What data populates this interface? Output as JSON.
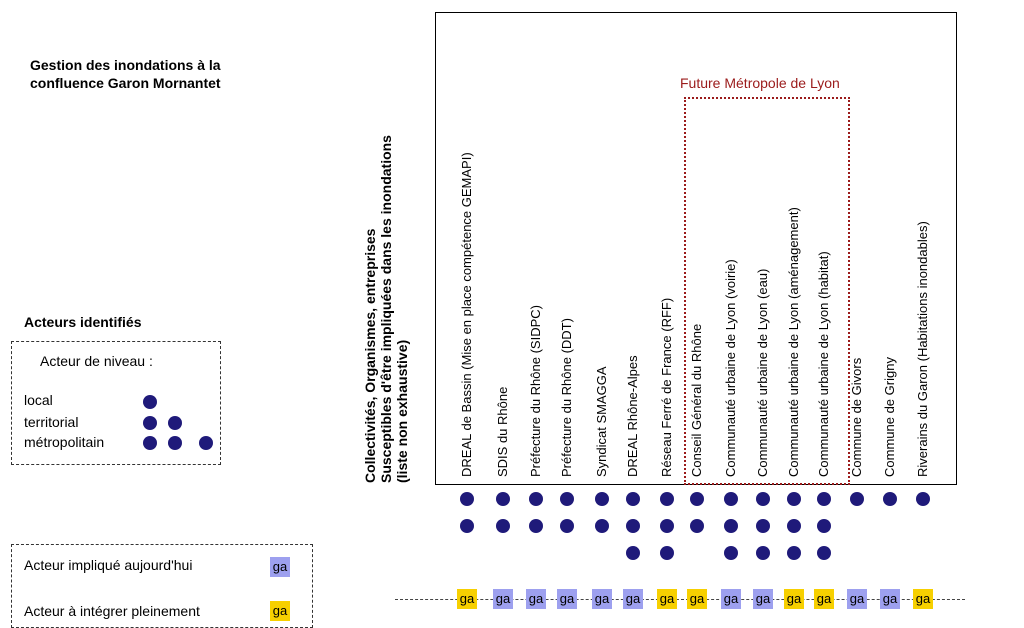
{
  "title": [
    "Gestion des inondations à la",
    "confluence Garon Mornantet"
  ],
  "legend": {
    "actors_title": "Acteurs identifiés",
    "level_heading": "Acteur de niveau :",
    "levels": [
      {
        "label": "local",
        "count": 1
      },
      {
        "label": "territorial",
        "count": 2
      },
      {
        "label": "métropolitain",
        "count": 3
      }
    ],
    "involvement": [
      {
        "label": "Acteur impliqué aujourd'hui",
        "badge": "ga",
        "color": "#9da0ef"
      },
      {
        "label": "Acteur à intégrer pleinement",
        "badge": "ga",
        "color": "#f7d000"
      }
    ]
  },
  "axis_title": [
    "Collectivités, Organismes, entreprises",
    "Susceptibles d'être impliquées dans les inondations",
    "(liste non exhaustive)"
  ],
  "group_label": "Future Métropole de Lyon",
  "colors": {
    "dot": "#1f1a7a",
    "involved": "#9da0ef",
    "to_integrate": "#f7d000",
    "group_border": "#9b1b1b"
  },
  "actors": [
    {
      "name": "DREAL de Bassin (Mise en place compétence GEMAPI)",
      "level": 2,
      "status": "to_integrate"
    },
    {
      "name": "SDIS du Rhône",
      "level": 2,
      "status": "involved"
    },
    {
      "name": "Préfecture du Rhône (SIDPC)",
      "level": 2,
      "status": "involved"
    },
    {
      "name": "Préfecture du Rhône (DDT)",
      "level": 2,
      "status": "involved"
    },
    {
      "name": "Syndicat SMAGGA",
      "level": 2,
      "status": "involved"
    },
    {
      "name": "DREAL Rhône-Alpes",
      "level": 3,
      "status": "involved"
    },
    {
      "name": "Réseau Ferré de France (RFF)",
      "level": 3,
      "status": "to_integrate"
    },
    {
      "name": "Conseil Général du Rhône",
      "level": 2,
      "status": "to_integrate"
    },
    {
      "name": "Communauté urbaine de Lyon (voirie)",
      "level": 3,
      "status": "involved"
    },
    {
      "name": "Communauté urbaine de Lyon (eau)",
      "level": 3,
      "status": "involved"
    },
    {
      "name": "Communauté urbaine de Lyon (aménagement)",
      "level": 3,
      "status": "to_integrate"
    },
    {
      "name": "Communauté urbaine de Lyon (habitat)",
      "level": 3,
      "status": "to_integrate"
    },
    {
      "name": "Commune de Givors",
      "level": 1,
      "status": "involved"
    },
    {
      "name": "Commune de Grigny",
      "level": 1,
      "status": "involved"
    },
    {
      "name": "Riverains du Garon  (Habitations inondables)",
      "level": 1,
      "status": "to_integrate"
    }
  ],
  "badge_text": "ga"
}
